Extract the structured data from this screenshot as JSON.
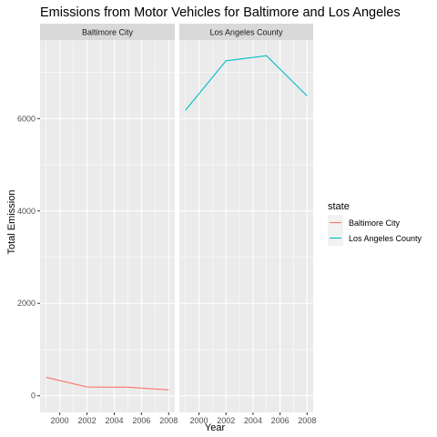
{
  "chart_data": {
    "type": "line",
    "title": "Emissions from Motor Vehicles for Baltimore and Los Angeles",
    "xlabel": "Year",
    "ylabel": "Total Emission",
    "x": [
      1999,
      2002,
      2005,
      2008
    ],
    "xlim": [
      1998.55,
      2008.45
    ],
    "ylim": [
      -360,
      7700
    ],
    "x_ticks": [
      2000,
      2002,
      2004,
      2006,
      2008
    ],
    "y_ticks": [
      0,
      2000,
      4000,
      6000
    ],
    "x_tick_labels": [
      "2000",
      "2002",
      "2004",
      "2006",
      "2008"
    ],
    "y_tick_labels": [
      "0",
      "2000",
      "4000",
      "6000"
    ],
    "grid": true,
    "facets": [
      "Baltimore City",
      "Los Angeles County"
    ],
    "series": [
      {
        "name": "Baltimore City",
        "color": "#F8766D",
        "values": [
          400,
          190,
          185,
          130
        ]
      },
      {
        "name": "Los Angeles County",
        "color": "#00BFC4",
        "values": [
          6180,
          7250,
          7360,
          6490
        ]
      }
    ],
    "legend": {
      "title": "state",
      "position": "right"
    }
  }
}
